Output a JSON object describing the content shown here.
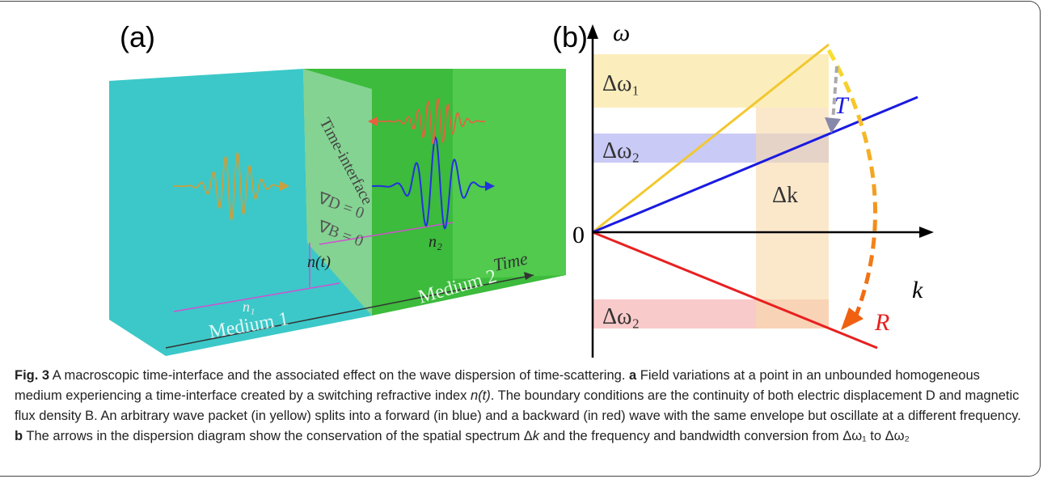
{
  "figure": {
    "panel_a": {
      "label": "(a)",
      "interface_label": "Time-interface",
      "eq_d": "∇D = 0",
      "eq_b": "∇B = 0",
      "index_t": "n(t)",
      "n1": "n₁",
      "n2": "n₂",
      "time": "Time",
      "medium1": "Medium 1",
      "medium2": "Medium 2"
    },
    "panel_b": {
      "label": "(b)",
      "omega": "ω",
      "origin": "0",
      "k": "k",
      "dw1": "Δω₁",
      "dw2_top": "Δω₂",
      "dk": "Δk",
      "dw2_bottom": "Δω₂",
      "T": "T",
      "R": "R"
    },
    "caption": {
      "parts": [
        "Fig. 3",
        " A macroscopic time-interface and the associated effect on the wave dispersion of time-scattering. ",
        "a",
        " Field variations at a point in an unbounded homogeneous medium experiencing a time-interface created by a switching refractive index ",
        "n(t)",
        ". The boundary conditions are the continuity of both electric displacement D and magnetic flux density B. An arbitrary wave packet (in yellow) splits into a forward (in blue) and a backward (in red) wave with the same envelope but oscillate at a different frequency. ",
        "b",
        " The arrows in the dispersion diagram show the conservation of the spatial spectrum Δ",
        "k",
        " and the frequency and bandwidth conversion from Δω₁ to Δω₂"
      ]
    }
  }
}
